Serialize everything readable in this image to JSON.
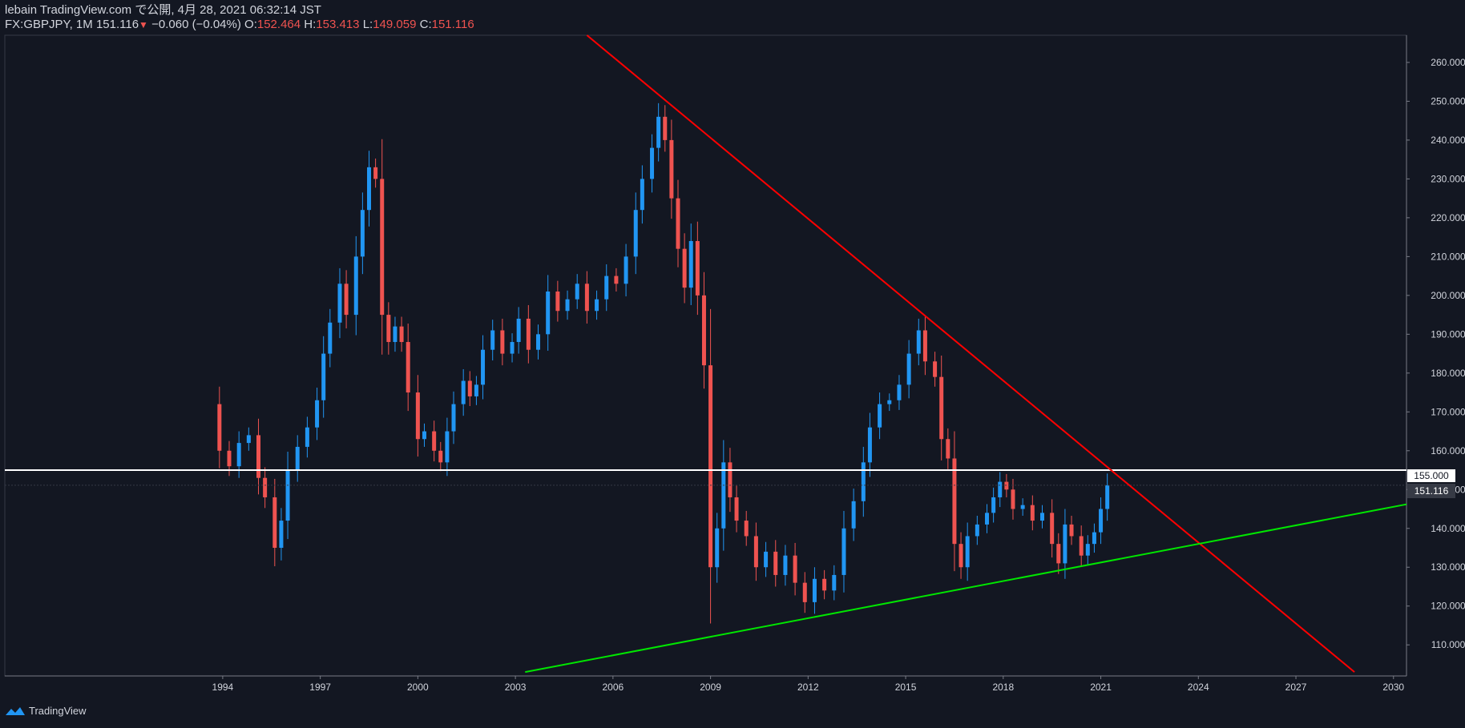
{
  "header": {
    "line1": "lebain TradingView.com で公開, 4月 28, 2021 06:32:14 JST",
    "symbol": "FX:GBPJPY, 1M",
    "last": "151.116",
    "arrow": "▼",
    "change": "−0.060 (−0.04%)",
    "o_label": "O:",
    "o_val": "152.464",
    "h_label": "H:",
    "h_val": "153.413",
    "l_label": "L:",
    "l_val": "149.059",
    "c_label": "C:",
    "c_val": "151.116"
  },
  "footer": {
    "brand": "TradingView",
    "logo_icon": "tradingview-logo-icon"
  },
  "colors": {
    "background": "#131722",
    "up": "#2196f3",
    "down": "#ef5350",
    "resistance": "#ff0000",
    "support": "#00e600",
    "level": "#ffffff",
    "text": "#d1d4dc"
  },
  "chart_data": {
    "type": "candlestick",
    "symbol": "FX:GBPJPY",
    "interval": "1M",
    "y_range": [
      102,
      267
    ],
    "x_range": [
      1987.3,
      2030.4
    ],
    "y_ticks": [
      "110.000",
      "120.000",
      "130.000",
      "140.000",
      "150.000",
      "160.000",
      "170.000",
      "180.000",
      "190.000",
      "200.000",
      "210.000",
      "220.000",
      "230.000",
      "240.000",
      "250.000",
      "260.000"
    ],
    "x_ticks": [
      "1994",
      "1997",
      "2000",
      "2003",
      "2006",
      "2009",
      "2012",
      "2015",
      "2018",
      "2021",
      "2024",
      "2027",
      "2030"
    ],
    "price_labels": {
      "level": "155.000",
      "last": "151.116"
    },
    "horizontal_line": 155.0,
    "resistance_line": {
      "from": [
        2005.2,
        267
      ],
      "to": [
        2028.8,
        103
      ]
    },
    "support_line": {
      "from": [
        2003.3,
        103
      ],
      "to": [
        2030.4,
        146.2
      ]
    },
    "closes": [
      [
        1993.5,
        172
      ],
      [
        1993.9,
        160
      ],
      [
        1994.2,
        156
      ],
      [
        1994.5,
        162
      ],
      [
        1994.8,
        164
      ],
      [
        1995.1,
        153
      ],
      [
        1995.3,
        148
      ],
      [
        1995.6,
        135
      ],
      [
        1995.8,
        142
      ],
      [
        1996.0,
        155
      ],
      [
        1996.3,
        161
      ],
      [
        1996.6,
        166
      ],
      [
        1996.9,
        173
      ],
      [
        1997.1,
        185
      ],
      [
        1997.3,
        193
      ],
      [
        1997.6,
        203
      ],
      [
        1997.8,
        195
      ],
      [
        1998.1,
        210
      ],
      [
        1998.3,
        222
      ],
      [
        1998.5,
        233
      ],
      [
        1998.7,
        230
      ],
      [
        1998.9,
        195
      ],
      [
        1999.1,
        188
      ],
      [
        1999.3,
        192
      ],
      [
        1999.5,
        188
      ],
      [
        1999.7,
        175
      ],
      [
        2000.0,
        163
      ],
      [
        2000.2,
        165
      ],
      [
        2000.5,
        160
      ],
      [
        2000.7,
        157
      ],
      [
        2000.9,
        165
      ],
      [
        2001.1,
        172
      ],
      [
        2001.4,
        178
      ],
      [
        2001.6,
        174
      ],
      [
        2001.8,
        177
      ],
      [
        2002.0,
        186
      ],
      [
        2002.3,
        191
      ],
      [
        2002.6,
        185
      ],
      [
        2002.9,
        188
      ],
      [
        2003.1,
        194
      ],
      [
        2003.4,
        186
      ],
      [
        2003.7,
        190
      ],
      [
        2004.0,
        201
      ],
      [
        2004.3,
        196
      ],
      [
        2004.6,
        199
      ],
      [
        2004.9,
        203
      ],
      [
        2005.2,
        196
      ],
      [
        2005.5,
        199
      ],
      [
        2005.8,
        205
      ],
      [
        2006.1,
        203
      ],
      [
        2006.4,
        210
      ],
      [
        2006.7,
        222
      ],
      [
        2006.9,
        230
      ],
      [
        2007.2,
        238
      ],
      [
        2007.4,
        246
      ],
      [
        2007.6,
        240
      ],
      [
        2007.8,
        225
      ],
      [
        2008.0,
        212
      ],
      [
        2008.2,
        202
      ],
      [
        2008.4,
        214
      ],
      [
        2008.6,
        200
      ],
      [
        2008.8,
        182
      ],
      [
        2009.0,
        130
      ],
      [
        2009.2,
        140
      ],
      [
        2009.4,
        157
      ],
      [
        2009.6,
        148
      ],
      [
        2009.8,
        142
      ],
      [
        2010.1,
        138
      ],
      [
        2010.4,
        130
      ],
      [
        2010.7,
        134
      ],
      [
        2011.0,
        128
      ],
      [
        2011.3,
        133
      ],
      [
        2011.6,
        126
      ],
      [
        2011.9,
        121
      ],
      [
        2012.2,
        127
      ],
      [
        2012.5,
        124
      ],
      [
        2012.8,
        128
      ],
      [
        2013.1,
        140
      ],
      [
        2013.4,
        147
      ],
      [
        2013.7,
        157
      ],
      [
        2013.9,
        166
      ],
      [
        2014.2,
        172
      ],
      [
        2014.5,
        173
      ],
      [
        2014.8,
        177
      ],
      [
        2015.1,
        185
      ],
      [
        2015.4,
        191
      ],
      [
        2015.6,
        183
      ],
      [
        2015.9,
        179
      ],
      [
        2016.1,
        163
      ],
      [
        2016.3,
        158
      ],
      [
        2016.5,
        136
      ],
      [
        2016.7,
        130
      ],
      [
        2016.9,
        138
      ],
      [
        2017.2,
        141
      ],
      [
        2017.5,
        144
      ],
      [
        2017.7,
        148
      ],
      [
        2017.9,
        152
      ],
      [
        2018.1,
        150
      ],
      [
        2018.3,
        145
      ],
      [
        2018.6,
        146
      ],
      [
        2018.9,
        142
      ],
      [
        2019.2,
        144
      ],
      [
        2019.5,
        136
      ],
      [
        2019.7,
        131
      ],
      [
        2019.9,
        141
      ],
      [
        2020.1,
        138
      ],
      [
        2020.4,
        133
      ],
      [
        2020.6,
        136
      ],
      [
        2020.8,
        139
      ],
      [
        2021.0,
        145
      ],
      [
        2021.2,
        151.1
      ]
    ]
  }
}
